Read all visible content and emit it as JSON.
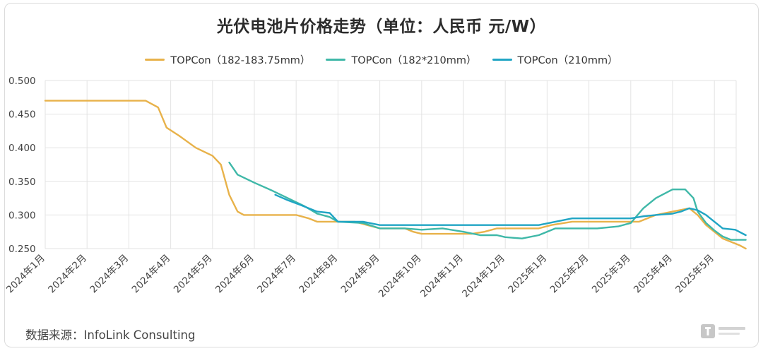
{
  "title": "光伏电池片价格走势（单位：人民币 元/W）",
  "source": "数据来源：InfoLink Consulting",
  "chart_data": {
    "type": "line",
    "ylim": [
      0.25,
      0.5
    ],
    "y_ticks": [
      "0.500",
      "0.450",
      "0.400",
      "0.350",
      "0.300",
      "0.250"
    ],
    "grid": true,
    "legend_position": "top",
    "x_labels": [
      "2024年1月",
      "2024年2月",
      "2024年3月",
      "2024年4月",
      "2024年5月",
      "2024年6月",
      "2024年7月",
      "2024年8月",
      "2024年9月",
      "2024年10月",
      "2024年11月",
      "2024年12月",
      "2025年1月",
      "2025年2月",
      "2025年3月",
      "2025年4月",
      "2025年5月"
    ],
    "series": [
      {
        "name": "TOPCon（182-183.75mm）",
        "color": "#e8b24a",
        "points": [
          [
            0,
            0.47
          ],
          [
            2.4,
            0.47
          ],
          [
            2.7,
            0.46
          ],
          [
            2.9,
            0.43
          ],
          [
            3.2,
            0.418
          ],
          [
            3.6,
            0.4
          ],
          [
            4.0,
            0.388
          ],
          [
            4.2,
            0.375
          ],
          [
            4.4,
            0.33
          ],
          [
            4.6,
            0.305
          ],
          [
            4.75,
            0.3
          ],
          [
            5.0,
            0.3
          ],
          [
            6.0,
            0.3
          ],
          [
            6.3,
            0.295
          ],
          [
            6.5,
            0.29
          ],
          [
            7.0,
            0.29
          ],
          [
            7.4,
            0.29
          ],
          [
            7.7,
            0.285
          ],
          [
            8.0,
            0.28
          ],
          [
            8.6,
            0.28
          ],
          [
            8.8,
            0.275
          ],
          [
            9.0,
            0.272
          ],
          [
            10.2,
            0.272
          ],
          [
            10.5,
            0.275
          ],
          [
            10.8,
            0.28
          ],
          [
            11.4,
            0.28
          ],
          [
            11.8,
            0.28
          ],
          [
            12.1,
            0.285
          ],
          [
            12.6,
            0.29
          ],
          [
            13.2,
            0.29
          ],
          [
            13.8,
            0.29
          ],
          [
            14.2,
            0.29
          ],
          [
            14.6,
            0.3
          ],
          [
            15.0,
            0.305
          ],
          [
            15.4,
            0.31
          ],
          [
            15.6,
            0.3
          ],
          [
            15.8,
            0.285
          ],
          [
            16.0,
            0.275
          ],
          [
            16.2,
            0.265
          ],
          [
            16.6,
            0.255
          ],
          [
            16.75,
            0.25
          ]
        ]
      },
      {
        "name": "TOPCon（182*210mm）",
        "color": "#3fb8a8",
        "points": [
          [
            4.4,
            0.378
          ],
          [
            4.6,
            0.36
          ],
          [
            5.0,
            0.348
          ],
          [
            5.4,
            0.337
          ],
          [
            5.8,
            0.325
          ],
          [
            6.2,
            0.313
          ],
          [
            6.5,
            0.302
          ],
          [
            6.8,
            0.297
          ],
          [
            7.0,
            0.29
          ],
          [
            7.6,
            0.288
          ],
          [
            8.0,
            0.28
          ],
          [
            8.6,
            0.28
          ],
          [
            9.0,
            0.278
          ],
          [
            9.5,
            0.28
          ],
          [
            10.0,
            0.275
          ],
          [
            10.4,
            0.27
          ],
          [
            10.8,
            0.27
          ],
          [
            11.0,
            0.267
          ],
          [
            11.4,
            0.265
          ],
          [
            11.8,
            0.27
          ],
          [
            12.2,
            0.28
          ],
          [
            12.6,
            0.28
          ],
          [
            13.2,
            0.28
          ],
          [
            13.7,
            0.283
          ],
          [
            14.0,
            0.288
          ],
          [
            14.3,
            0.31
          ],
          [
            14.6,
            0.325
          ],
          [
            15.0,
            0.338
          ],
          [
            15.3,
            0.338
          ],
          [
            15.5,
            0.325
          ],
          [
            15.6,
            0.305
          ],
          [
            15.8,
            0.288
          ],
          [
            16.0,
            0.277
          ],
          [
            16.2,
            0.268
          ],
          [
            16.4,
            0.263
          ],
          [
            16.75,
            0.263
          ]
        ]
      },
      {
        "name": "TOPCon（210mm）",
        "color": "#20a5c4",
        "points": [
          [
            5.5,
            0.33
          ],
          [
            5.8,
            0.322
          ],
          [
            6.1,
            0.315
          ],
          [
            6.3,
            0.31
          ],
          [
            6.5,
            0.305
          ],
          [
            6.8,
            0.303
          ],
          [
            7.0,
            0.29
          ],
          [
            7.6,
            0.29
          ],
          [
            8.0,
            0.285
          ],
          [
            8.6,
            0.285
          ],
          [
            9.0,
            0.285
          ],
          [
            10.0,
            0.285
          ],
          [
            11.0,
            0.285
          ],
          [
            11.8,
            0.285
          ],
          [
            12.2,
            0.29
          ],
          [
            12.6,
            0.295
          ],
          [
            13.2,
            0.295
          ],
          [
            13.7,
            0.295
          ],
          [
            14.0,
            0.295
          ],
          [
            14.3,
            0.298
          ],
          [
            14.6,
            0.3
          ],
          [
            15.0,
            0.302
          ],
          [
            15.2,
            0.305
          ],
          [
            15.4,
            0.31
          ],
          [
            15.6,
            0.307
          ],
          [
            15.8,
            0.3
          ],
          [
            16.0,
            0.29
          ],
          [
            16.2,
            0.28
          ],
          [
            16.5,
            0.278
          ],
          [
            16.75,
            0.27
          ]
        ]
      }
    ]
  }
}
